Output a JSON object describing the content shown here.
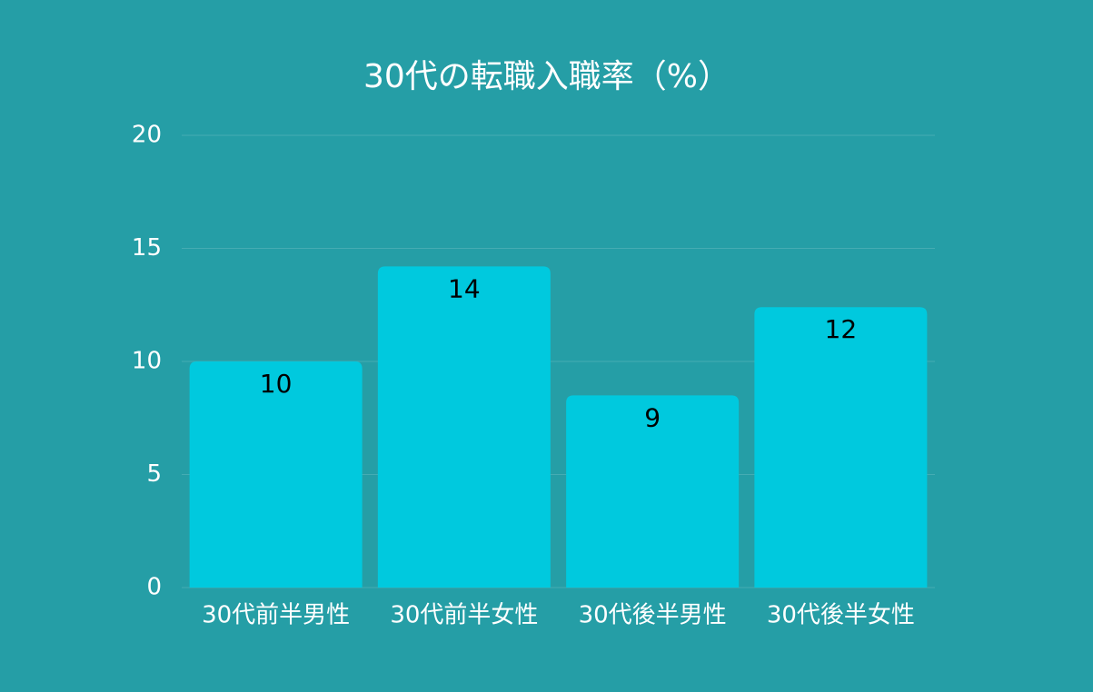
{
  "chart_data": {
    "type": "bar",
    "title": "30代の転職入職率（%）",
    "categories": [
      "30代前半男性",
      "30代前半女性",
      "30代後半男性",
      "30代後半女性"
    ],
    "values": [
      10,
      14.2,
      8.5,
      12.4
    ],
    "value_labels": [
      "10",
      "14",
      "9",
      "12"
    ],
    "color": "#00c9de",
    "ylim": [
      0,
      20
    ],
    "yticks": [
      0,
      5,
      10,
      15,
      20
    ],
    "grid": true
  }
}
